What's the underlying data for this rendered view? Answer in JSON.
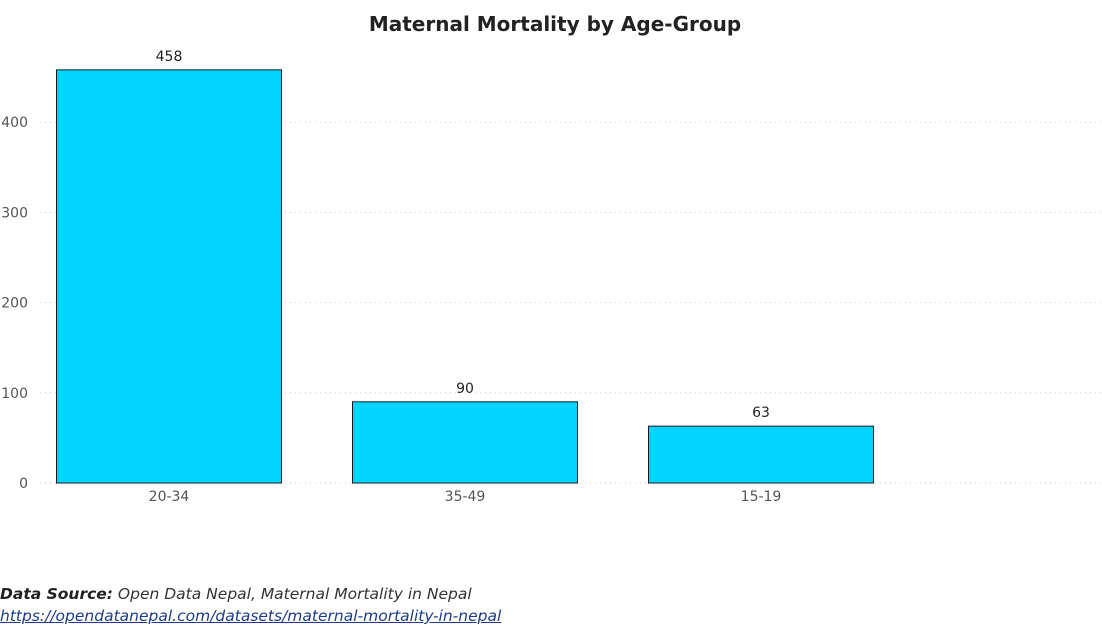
{
  "chart_data": {
    "type": "bar",
    "title": "Maternal Mortality by Age-Group",
    "categories": [
      "20-34",
      "35-49",
      "15-19"
    ],
    "values": [
      458,
      90,
      63
    ],
    "ylim": [
      0,
      480
    ],
    "yticks": [
      0,
      100,
      200,
      300,
      400
    ],
    "xlabel": "",
    "ylabel": "",
    "grid": "horizontal-dotted",
    "data_labels": true,
    "bar_color": "#00d4ff",
    "bar_edge_color": "#1a1a1a"
  },
  "source": {
    "label": "Data Source:",
    "text": "Open Data Nepal, Maternal Mortality in Nepal",
    "url": "https://opendatanepal.com/datasets/maternal-mortality-in-nepal"
  }
}
